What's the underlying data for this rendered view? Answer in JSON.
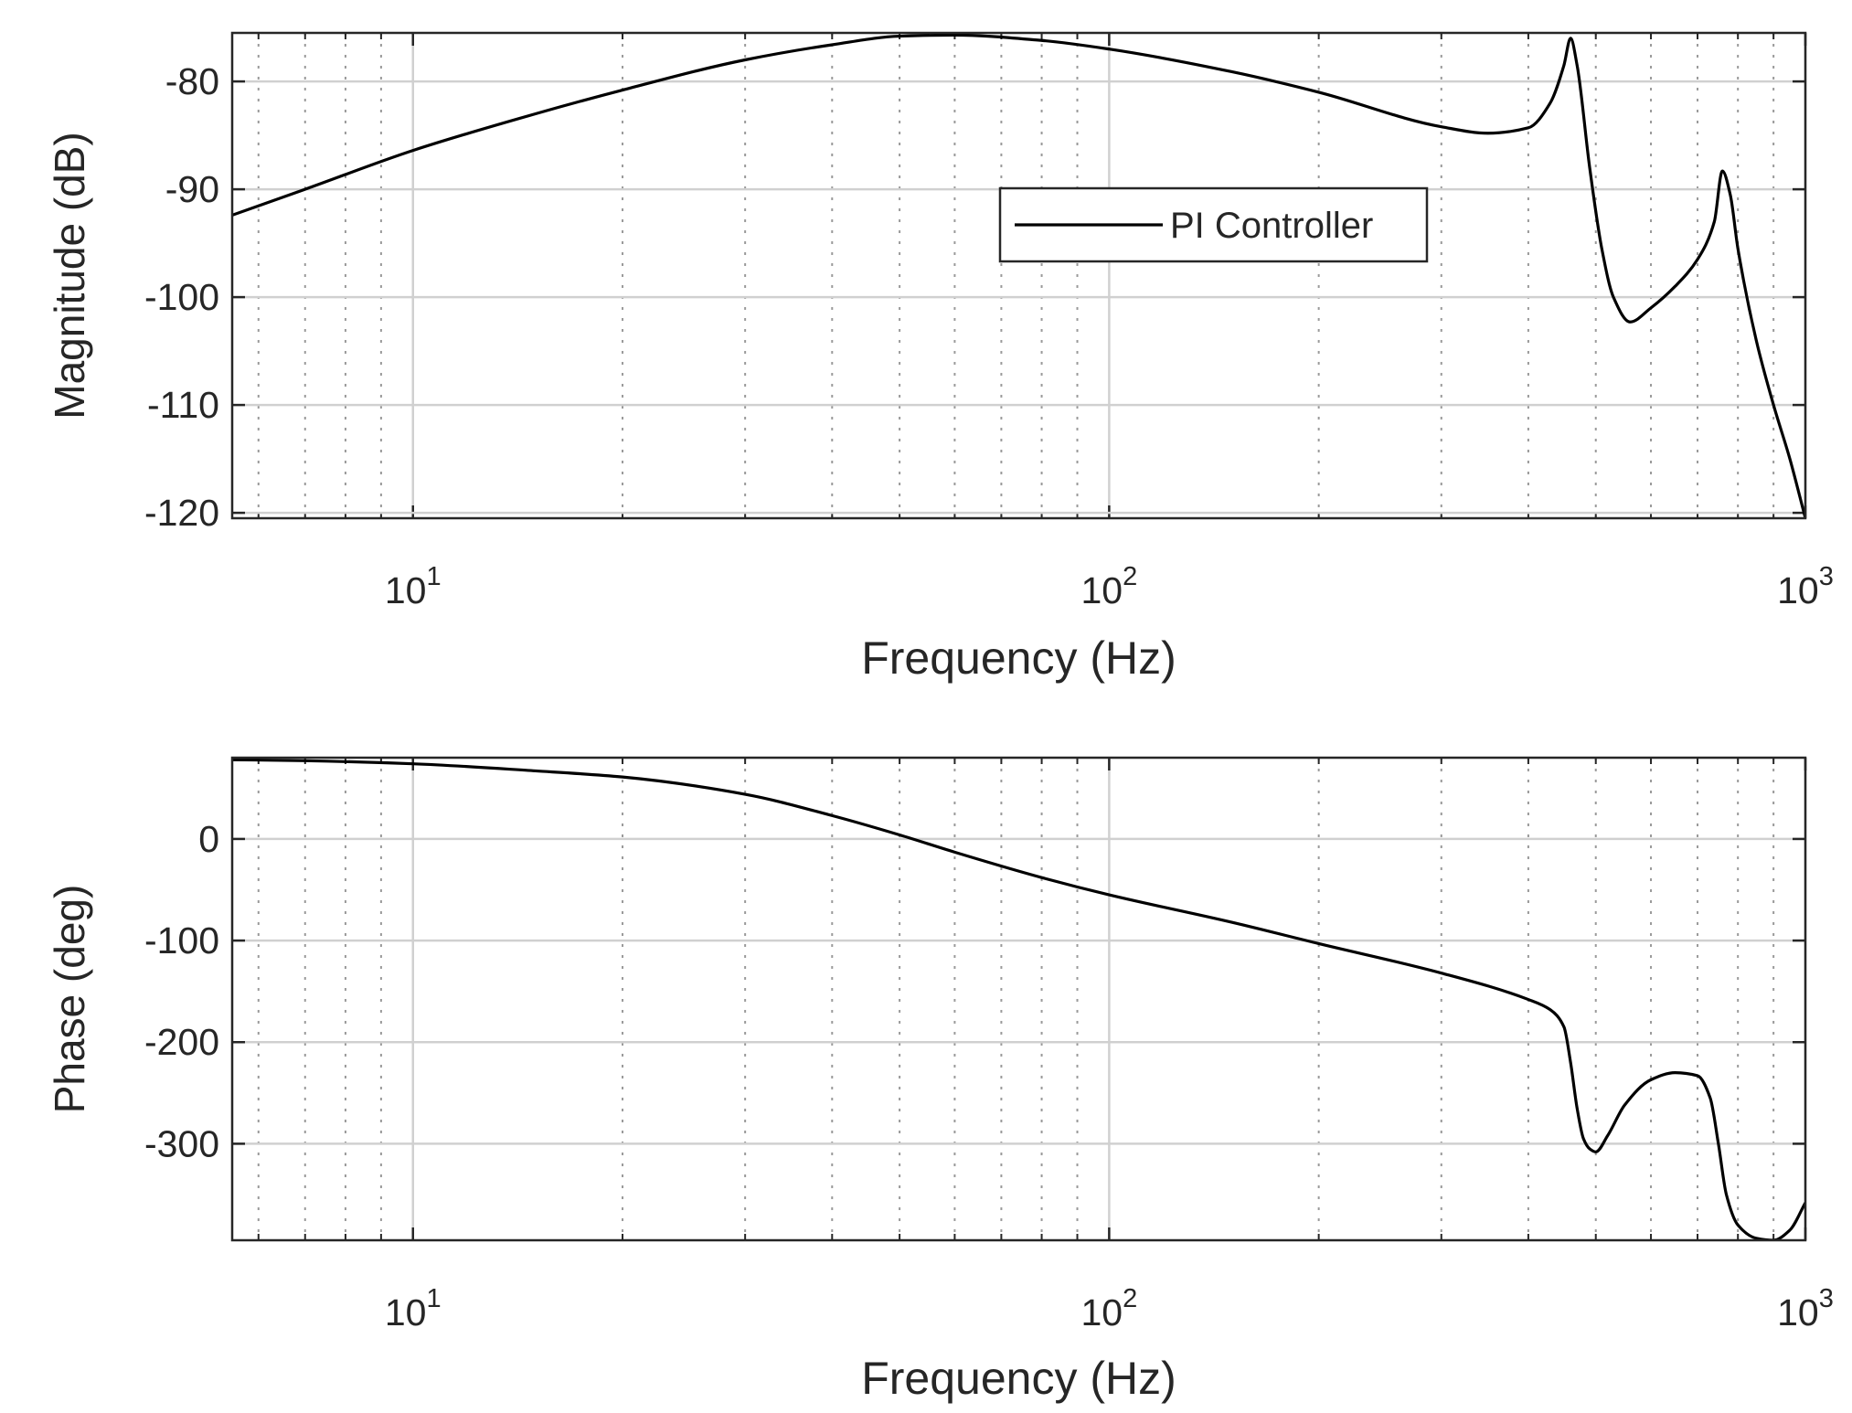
{
  "chart_data": [
    {
      "type": "line",
      "xlabel": "Frequency (Hz)",
      "ylabel": "Magnitude (dB)",
      "xscale": "log",
      "xlim": [
        5.5,
        1000
      ],
      "ylim": [
        -120.5,
        -75.5
      ],
      "yticks": [
        -80,
        -90,
        -100,
        -110,
        -120
      ],
      "xticks": [
        10,
        100,
        1000
      ],
      "xtick_labels": [
        {
          "base": "10",
          "exp": "1"
        },
        {
          "base": "10",
          "exp": "2"
        },
        {
          "base": "10",
          "exp": "3"
        }
      ],
      "grid": true,
      "legend": {
        "position": "center-right",
        "entries": [
          "PI Controller"
        ]
      },
      "series": [
        {
          "name": "PI Controller",
          "color": "#000000",
          "x": [
            5.5,
            7,
            10,
            15,
            20,
            30,
            40,
            50,
            60,
            80,
            100,
            150,
            200,
            300,
            350,
            400,
            430,
            450,
            460,
            470,
            490,
            510,
            530,
            560,
            600,
            650,
            700,
            740,
            760,
            780,
            800,
            850,
            900,
            950,
            1000
          ],
          "y": [
            -92.4,
            -90.0,
            -86.4,
            -83.0,
            -80.8,
            -78.0,
            -76.6,
            -75.8,
            -75.7,
            -76.2,
            -77.0,
            -79.1,
            -81.0,
            -84.2,
            -84.8,
            -84.3,
            -82.0,
            -78.5,
            -76.0,
            -78.5,
            -88.0,
            -95.5,
            -100.0,
            -102.3,
            -101.0,
            -99.0,
            -96.5,
            -93.0,
            -88.3,
            -90.5,
            -95.5,
            -104.0,
            -110.0,
            -115.0,
            -120.5
          ]
        }
      ]
    },
    {
      "type": "line",
      "xlabel": "Frequency (Hz)",
      "ylabel": "Phase (deg)",
      "xscale": "log",
      "xlim": [
        5.5,
        1000
      ],
      "ylim": [
        -395,
        80
      ],
      "yticks": [
        0,
        -100,
        -200,
        -300
      ],
      "xticks": [
        10,
        100,
        1000
      ],
      "xtick_labels": [
        {
          "base": "10",
          "exp": "1"
        },
        {
          "base": "10",
          "exp": "2"
        },
        {
          "base": "10",
          "exp": "3"
        }
      ],
      "grid": true,
      "series": [
        {
          "name": "PI Controller",
          "color": "#000000",
          "x": [
            5.5,
            7,
            10,
            15,
            20,
            30,
            40,
            50,
            60,
            80,
            100,
            150,
            200,
            300,
            400,
            430,
            450,
            460,
            470,
            480,
            490,
            500,
            520,
            550,
            600,
            650,
            700,
            730,
            750,
            770,
            800,
            850,
            900,
            950,
            1000
          ],
          "y": [
            78,
            77,
            74,
            67,
            61,
            44,
            23,
            4,
            -13,
            -38,
            -55,
            -82,
            -103,
            -132,
            -158,
            -168,
            -185,
            -220,
            -265,
            -295,
            -305,
            -308,
            -292,
            -262,
            -237,
            -230,
            -233,
            -255,
            -300,
            -350,
            -380,
            -393,
            -395,
            -385,
            -358
          ]
        }
      ]
    }
  ]
}
